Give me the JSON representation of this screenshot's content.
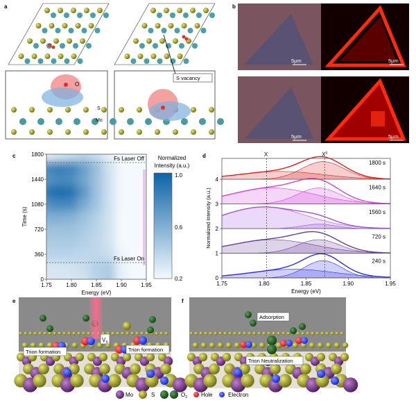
{
  "panel_labels": {
    "a": "a",
    "b": "b",
    "c": "c",
    "d": "d",
    "e": "e",
    "f": "f"
  },
  "panel_a": {
    "o_label": "O",
    "s_label": "S",
    "mo_label": "Mo",
    "vacancy_label": "S vacancy"
  },
  "panel_b": {
    "scale_bars": [
      "5μm",
      "5μm",
      "5μm",
      "5μm"
    ]
  },
  "panel_e": {
    "trion_left": "Trion formation",
    "trion_right": "Trion formation",
    "vs_main": "V",
    "vs_sub": "S"
  },
  "panel_f": {
    "adsorption": "Adsorption",
    "neutralization": "Trion Neutralization"
  },
  "legend": {
    "mo": "Mo",
    "s": "S",
    "o2_main": "O",
    "o2_sub": "2",
    "hole": "Hole",
    "electron": "Electron"
  },
  "colors": {
    "mo": "#6a2a7a",
    "s": "#a8a820",
    "o2": "#1f5a1f",
    "hole": "#ff2020",
    "electron": "#2a3aff",
    "heat_max": "#0b63a8"
  },
  "chart_data": [
    {
      "type": "heatmap",
      "xlabel": "Energy (eV)",
      "ylabel": "Time (s)",
      "xlim": [
        1.75,
        1.95
      ],
      "ylim": [
        0,
        1800
      ],
      "xticks": [
        "1.75",
        "1.80",
        "1.85",
        "1.90",
        "1.95"
      ],
      "yticks": [
        "0",
        "360",
        "720",
        "1080",
        "1440",
        "1800"
      ],
      "colorbar": {
        "title_line1": "Normalized",
        "title_line2": "Intensity (a.u.)",
        "range": [
          0.2,
          1.0
        ],
        "ticks": [
          "1.0",
          "0.6",
          "0.2"
        ]
      },
      "annotations": [
        {
          "text": "Fs Laser Off",
          "time": 1680
        },
        {
          "text": "Fs Laser On",
          "time": 240
        }
      ],
      "energies": [
        1.75,
        1.775,
        1.8,
        1.825,
        1.85,
        1.875,
        1.9,
        1.925,
        1.95
      ],
      "times": [
        0,
        180,
        360,
        540,
        720,
        900,
        1080,
        1260,
        1440,
        1620,
        1800
      ],
      "values": [
        [
          0.3,
          0.3,
          0.3,
          0.32,
          0.4,
          0.45,
          0.25,
          0.2,
          0.2
        ],
        [
          0.3,
          0.3,
          0.32,
          0.35,
          0.42,
          0.45,
          0.25,
          0.2,
          0.2
        ],
        [
          0.4,
          0.4,
          0.4,
          0.38,
          0.38,
          0.35,
          0.22,
          0.2,
          0.2
        ],
        [
          0.45,
          0.45,
          0.45,
          0.42,
          0.38,
          0.32,
          0.2,
          0.2,
          0.2
        ],
        [
          0.5,
          0.5,
          0.5,
          0.45,
          0.4,
          0.32,
          0.2,
          0.2,
          0.2
        ],
        [
          0.6,
          0.6,
          0.58,
          0.5,
          0.42,
          0.32,
          0.2,
          0.2,
          0.2
        ],
        [
          0.75,
          0.8,
          0.78,
          0.62,
          0.48,
          0.33,
          0.2,
          0.2,
          0.2
        ],
        [
          0.9,
          0.95,
          0.92,
          0.72,
          0.5,
          0.33,
          0.2,
          0.2,
          0.2
        ],
        [
          0.75,
          0.8,
          0.78,
          0.65,
          0.5,
          0.33,
          0.2,
          0.2,
          0.2
        ],
        [
          0.8,
          0.85,
          0.82,
          0.68,
          0.52,
          0.33,
          0.2,
          0.2,
          0.2
        ],
        [
          0.25,
          0.3,
          0.35,
          0.4,
          0.35,
          0.25,
          0.2,
          0.2,
          0.2
        ]
      ]
    },
    {
      "type": "line",
      "xlabel": "Energy (eV)",
      "ylabel": "Normalized Intensity (a.u.)",
      "xlim": [
        1.75,
        1.95
      ],
      "ylim": [
        0,
        4.85
      ],
      "xticks": [
        "1.75",
        "1.80",
        "1.85",
        "1.90",
        "1.95"
      ],
      "yticks": [
        "0",
        "1",
        "2",
        "3",
        "4"
      ],
      "reference_lines": [
        {
          "label_main": "X",
          "label_sup": "-",
          "energy": 1.803
        },
        {
          "label_main": "X",
          "label_sup": "0",
          "energy": 1.872
        }
      ],
      "series": [
        {
          "name": "240 s",
          "offset": 0,
          "color": "#2a2ae8",
          "x_minus": {
            "center": 1.835,
            "amp": 0.35,
            "sigma": 0.05
          },
          "x0": {
            "center": 1.87,
            "amp": 0.7,
            "sigma": 0.022
          }
        },
        {
          "name": "720 s",
          "offset": 1,
          "color": "#6a3a9a",
          "x_minus": {
            "center": 1.81,
            "amp": 0.55,
            "sigma": 0.05
          },
          "x0": {
            "center": 1.865,
            "amp": 0.55,
            "sigma": 0.025
          }
        },
        {
          "name": "1560 s",
          "offset": 2,
          "color": "#a050e0",
          "x_minus": {
            "center": 1.8,
            "amp": 0.88,
            "sigma": 0.05
          },
          "x0": {
            "center": 1.865,
            "amp": 0.18,
            "sigma": 0.02
          }
        },
        {
          "name": "1640 s",
          "offset": 3,
          "color": "#d040e0",
          "x_minus": {
            "center": 1.81,
            "amp": 0.65,
            "sigma": 0.05
          },
          "x0": {
            "center": 1.865,
            "amp": 0.65,
            "sigma": 0.025
          }
        },
        {
          "name": "1800 s",
          "offset": 4,
          "color": "#d82020",
          "x_minus": {
            "center": 1.82,
            "amp": 0.32,
            "sigma": 0.05
          },
          "x0": {
            "center": 1.87,
            "amp": 0.72,
            "sigma": 0.025
          }
        }
      ]
    }
  ]
}
